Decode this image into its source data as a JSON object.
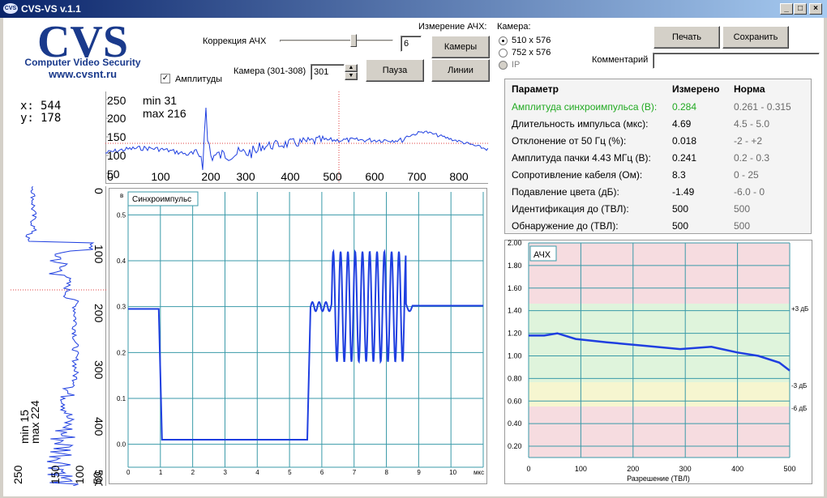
{
  "window": {
    "title": "CVS-VS v.1.1",
    "icon_text": "CVS"
  },
  "logo": {
    "big": "CVS",
    "subtitle": "Computer Video Security",
    "url": "www.cvsnt.ru"
  },
  "controls": {
    "afc_correction_label": "Коррекция АЧХ",
    "afc_correction_value": "6",
    "afc_correction_level": 0.66,
    "afc_measure_label": "Измерение АЧХ:",
    "cameras_button": "Камеры",
    "lines_button": "Линии",
    "pause_button": "Пауза",
    "camera_label": "Камера (301-308)",
    "camera_value": "301",
    "amplitudes_label": "Амплитуды",
    "amplitudes_checked": true,
    "camera_mode_label": "Камера:",
    "modes": [
      "510 x 576",
      "752 x 576",
      "IP"
    ],
    "selected_mode": "510 x 576",
    "print_button": "Печать",
    "save_button": "Сохранить",
    "comment_label": "Комментарий",
    "comment_value": ""
  },
  "cursor": {
    "x_label": "x:",
    "x_value": "544",
    "y_label": "y:",
    "y_value": "178"
  },
  "horizontal_profile": {
    "min_label": "min 31",
    "max_label": "max 216",
    "y_ticks": [
      "250",
      "200",
      "150",
      "100",
      "50"
    ],
    "x_ticks": [
      "0",
      "100",
      "200",
      "300",
      "400",
      "500",
      "600",
      "700",
      "800"
    ]
  },
  "vertical_profile": {
    "min_label": "min 15",
    "max_label": "max 224",
    "tick_labels": [
      "0",
      "100",
      "200",
      "300",
      "400",
      "500"
    ],
    "bottom_labels": [
      "250",
      "150",
      "100",
      "50"
    ]
  },
  "sync_plot": {
    "title": "Синхроимпульс",
    "y_unit": "в",
    "x_unit": "мкс",
    "y_ticks": [
      "0.5",
      "0.4",
      "0.3",
      "0.2",
      "0.1",
      "0.0"
    ],
    "x_ticks": [
      "0",
      "1",
      "2",
      "3",
      "4",
      "5",
      "6",
      "7",
      "8",
      "9",
      "10"
    ]
  },
  "afc_plot": {
    "title": "АЧХ",
    "x_label": "Разрешение (ТВЛ)",
    "y_ticks": [
      "2.00",
      "1.80",
      "1.60",
      "1.40",
      "1.20",
      "1.00",
      "0.80",
      "0.60",
      "0.40",
      "0.20"
    ],
    "x_ticks": [
      "0",
      "100",
      "200",
      "300",
      "400",
      "500"
    ],
    "db_labels": [
      "+3 дБ",
      "-3 дБ",
      "-6 дБ"
    ]
  },
  "measurements": {
    "headers": [
      "Параметр",
      "Измерено",
      "Норма"
    ],
    "rows": [
      {
        "param": "Амплитуда синхроимпульса (В):",
        "measured": "0.284",
        "norm": "0.261 - 0.315",
        "highlight": true
      },
      {
        "param": "Длительность импульса (мкс):",
        "measured": "4.69",
        "norm": "4.5 - 5.0"
      },
      {
        "param": "Отклонение от 50 Гц (%):",
        "measured": "0.018",
        "norm": "-2 - +2"
      },
      {
        "param": "Амплитуда пачки 4.43 МГц (В):",
        "measured": "0.241",
        "norm": "0.2 - 0.3"
      },
      {
        "param": "Сопротивление кабеля (Ом):",
        "measured": "8.3",
        "norm": "0 - 25"
      },
      {
        "param": "Подавление цвета (дБ):",
        "measured": "-1.49",
        "norm": "-6.0 - 0"
      },
      {
        "param": "Идентификация до (ТВЛ):",
        "measured": "500",
        "norm": "500"
      },
      {
        "param": "Обнаружение до (ТВЛ):",
        "measured": "500",
        "norm": "500"
      }
    ]
  },
  "colors": {
    "trace": "#1f3fe0",
    "grid": "#3a9aa8",
    "highlight": "#22aa22",
    "logo": "#1a3a8c"
  }
}
